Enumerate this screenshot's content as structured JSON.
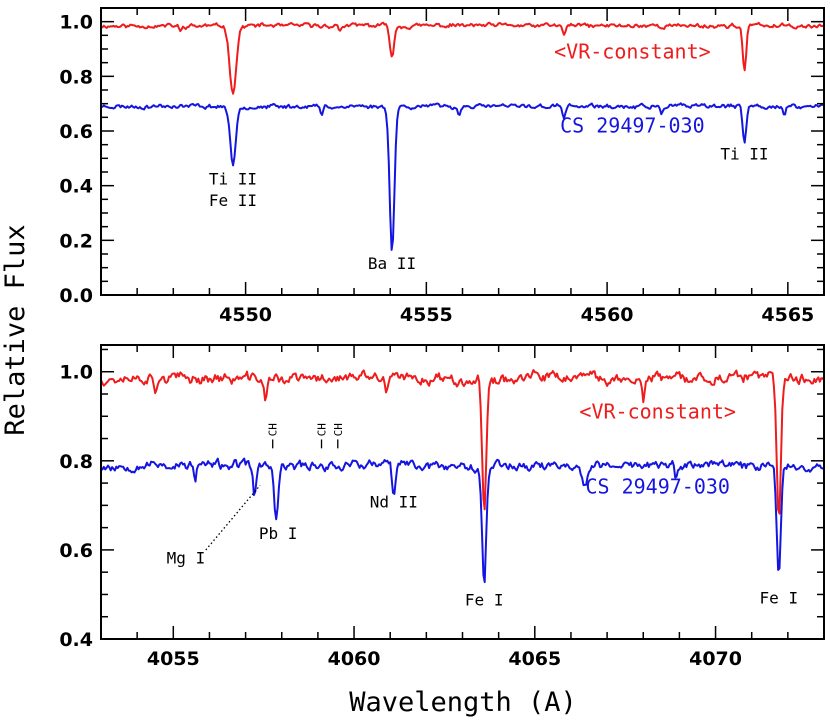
{
  "figure": {
    "ylabel": "Relative Flux",
    "xlabel": "Wavelength (A)"
  },
  "colors": {
    "red": "#ee1c1c",
    "blue": "#1515e0",
    "axis": "#000000"
  },
  "chart_data": [
    {
      "type": "line",
      "panel": "top",
      "xlim": [
        4546.0,
        4566.0
      ],
      "ylim": [
        0.0,
        1.05
      ],
      "xticks": [
        4550,
        4555,
        4560,
        4565
      ],
      "yticks": [
        0.0,
        0.2,
        0.4,
        0.6,
        0.8,
        1.0
      ],
      "ytick_labels": [
        "0.0",
        "0.2",
        "0.4",
        "0.6",
        "0.8",
        "1.0"
      ],
      "series": [
        {
          "name": "<VR-constant>",
          "color": "#ee1c1c",
          "baseline": 0.985,
          "noise": 0.012,
          "seed": 11,
          "lines": [
            [
              4549.65,
              0.745,
              0.13
            ],
            [
              4554.05,
              0.875,
              0.08
            ],
            [
              4558.8,
              0.955,
              0.06
            ],
            [
              4563.8,
              0.82,
              0.07
            ],
            [
              4548.2,
              0.96,
              0.05
            ],
            [
              4552.6,
              0.965,
              0.05
            ]
          ],
          "values": [
            [
              4546.0,
              0.99
            ],
            [
              4549.65,
              0.745
            ],
            [
              4554.05,
              0.875
            ],
            [
              4558.8,
              0.955
            ],
            [
              4563.8,
              0.82
            ],
            [
              4566.0,
              0.99
            ]
          ]
        },
        {
          "name": "CS 29497-030",
          "color": "#1515e0",
          "baseline": 0.69,
          "noise": 0.012,
          "seed": 23,
          "lines": [
            [
              4549.65,
              0.475,
              0.11
            ],
            [
              4554.05,
              0.155,
              0.09
            ],
            [
              4563.8,
              0.55,
              0.07
            ],
            [
              4552.1,
              0.655,
              0.05
            ],
            [
              4555.9,
              0.665,
              0.05
            ],
            [
              4558.8,
              0.645,
              0.05
            ],
            [
              4561.5,
              0.66,
              0.05
            ],
            [
              4564.9,
              0.655,
              0.05
            ]
          ],
          "values": [
            [
              4546.0,
              0.69
            ],
            [
              4549.65,
              0.475
            ],
            [
              4554.05,
              0.155
            ],
            [
              4563.8,
              0.55
            ],
            [
              4566.0,
              0.69
            ]
          ]
        }
      ],
      "annotations": [
        {
          "text": "Ti II",
          "x": 4549.65,
          "y": 0.405
        },
        {
          "text": "Fe II",
          "x": 4549.65,
          "y": 0.325
        },
        {
          "text": "Ba II",
          "x": 4554.05,
          "y": 0.095
        },
        {
          "text": "Ti II",
          "x": 4563.8,
          "y": 0.495
        }
      ],
      "series_labels": [
        {
          "text": "<VR-constant>",
          "x": 4560.7,
          "y": 0.865,
          "color": "#ee1c1c"
        },
        {
          "text": "CS 29497-030",
          "x": 4560.7,
          "y": 0.595,
          "color": "#1515e0"
        }
      ]
    },
    {
      "type": "line",
      "panel": "bottom",
      "xlim": [
        4053.0,
        4073.0
      ],
      "ylim": [
        0.4,
        1.06
      ],
      "xticks": [
        4055,
        4060,
        4065,
        4070
      ],
      "yticks": [
        0.4,
        0.6,
        0.8,
        1.0
      ],
      "ytick_labels": [
        "0.4",
        "0.6",
        "0.8",
        "1.0"
      ],
      "series": [
        {
          "name": "<VR-constant>",
          "color": "#ee1c1c",
          "baseline": 0.985,
          "noise": 0.018,
          "seed": 37,
          "lines": [
            [
              4063.6,
              0.675,
              0.08
            ],
            [
              4071.75,
              0.675,
              0.08
            ],
            [
              4057.55,
              0.935,
              0.06
            ],
            [
              4068.0,
              0.935,
              0.06
            ],
            [
              4054.5,
              0.955,
              0.05
            ],
            [
              4060.9,
              0.945,
              0.05
            ]
          ],
          "values": [
            [
              4053.0,
              0.985
            ],
            [
              4063.6,
              0.675
            ],
            [
              4071.75,
              0.675
            ],
            [
              4073.0,
              0.985
            ]
          ]
        },
        {
          "name": "CS 29497-030",
          "color": "#1515e0",
          "baseline": 0.79,
          "noise": 0.016,
          "seed": 53,
          "lines": [
            [
              4063.6,
              0.53,
              0.08
            ],
            [
              4071.75,
              0.545,
              0.08
            ],
            [
              4057.85,
              0.665,
              0.08
            ],
            [
              4057.25,
              0.72,
              0.06
            ],
            [
              4061.1,
              0.715,
              0.06
            ],
            [
              4066.4,
              0.74,
              0.1
            ],
            [
              4055.6,
              0.755,
              0.05
            ],
            [
              4068.9,
              0.75,
              0.05
            ]
          ],
          "values": [
            [
              4053.0,
              0.79
            ],
            [
              4057.85,
              0.665
            ],
            [
              4063.6,
              0.53
            ],
            [
              4071.75,
              0.545
            ],
            [
              4073.0,
              0.79
            ]
          ]
        }
      ],
      "annotations": [
        {
          "text": "Pb I",
          "x": 4057.9,
          "y": 0.625
        },
        {
          "text": "Mg I",
          "x": 4055.35,
          "y": 0.57
        },
        {
          "text": "Nd II",
          "x": 4061.1,
          "y": 0.695
        },
        {
          "text": "Fe I",
          "x": 4063.6,
          "y": 0.475
        },
        {
          "text": "Fe I",
          "x": 4071.75,
          "y": 0.48
        }
      ],
      "ch_marks": [
        {
          "text": "CH",
          "x": 4057.75
        },
        {
          "text": "CH",
          "x": 4059.1
        },
        {
          "text": "CH",
          "x": 4059.55
        }
      ],
      "series_labels": [
        {
          "text": "<VR-constant>",
          "x": 4068.4,
          "y": 0.895,
          "color": "#ee1c1c"
        },
        {
          "text": "CS 29497-030",
          "x": 4068.4,
          "y": 0.727,
          "color": "#1515e0"
        }
      ]
    }
  ]
}
